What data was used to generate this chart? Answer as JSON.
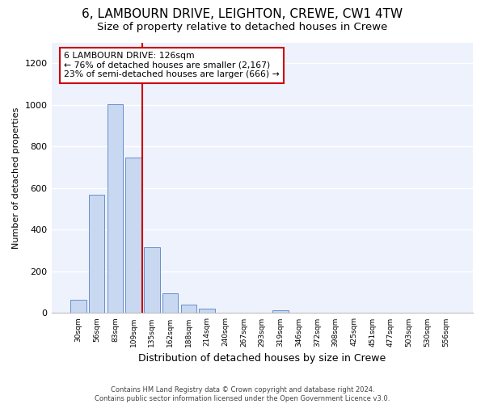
{
  "title": "6, LAMBOURN DRIVE, LEIGHTON, CREWE, CW1 4TW",
  "subtitle": "Size of property relative to detached houses in Crewe",
  "xlabel": "Distribution of detached houses by size in Crewe",
  "ylabel": "Number of detached properties",
  "bar_color": "#c8d8f0",
  "bar_edge_color": "#5580c8",
  "background_color": "#eef2fc",
  "grid_color": "#ffffff",
  "categories": [
    "30sqm",
    "56sqm",
    "83sqm",
    "109sqm",
    "135sqm",
    "162sqm",
    "188sqm",
    "214sqm",
    "240sqm",
    "267sqm",
    "293sqm",
    "319sqm",
    "346sqm",
    "372sqm",
    "398sqm",
    "425sqm",
    "451sqm",
    "477sqm",
    "503sqm",
    "530sqm",
    "556sqm"
  ],
  "values": [
    65,
    570,
    1005,
    745,
    315,
    95,
    40,
    20,
    0,
    0,
    0,
    15,
    0,
    0,
    0,
    0,
    0,
    0,
    0,
    0,
    0
  ],
  "ylim": [
    0,
    1300
  ],
  "yticks": [
    0,
    200,
    400,
    600,
    800,
    1000,
    1200
  ],
  "annotation_text": "6 LAMBOURN DRIVE: 126sqm\n← 76% of detached houses are smaller (2,167)\n23% of semi-detached houses are larger (666) →",
  "vline_color": "#cc0000",
  "annotation_box_color": "#ffffff",
  "annotation_box_edge": "#cc0000",
  "footer_text": "Contains HM Land Registry data © Crown copyright and database right 2024.\nContains public sector information licensed under the Open Government Licence v3.0.",
  "fig_bg": "#ffffff",
  "title_fontsize": 11,
  "subtitle_fontsize": 9.5,
  "xlabel_fontsize": 9,
  "ylabel_fontsize": 8
}
